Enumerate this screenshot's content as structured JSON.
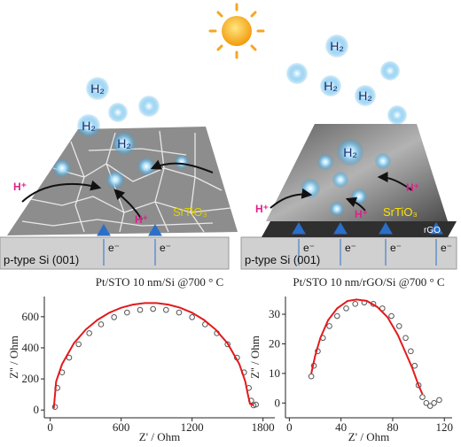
{
  "illustrations": [
    {
      "bubble_labels": [
        "H₂",
        "H₂",
        "H₂"
      ],
      "proton_labels": [
        "H⁺",
        "H⁺"
      ],
      "film_label": "SrTiO₃",
      "electron_labels": [
        "e⁻",
        "e⁻"
      ],
      "substrate_label": "p-type Si (001)"
    },
    {
      "bubble_labels": [
        "H₂",
        "H₂",
        "H₂",
        "H₂"
      ],
      "proton_labels": [
        "H⁺",
        "H⁺",
        "H⁺"
      ],
      "film_label": "SrTiO₃",
      "interlayer_label": "rGO",
      "electron_labels": [
        "e⁻",
        "e⁻",
        "e⁻",
        "e⁻"
      ],
      "substrate_label": "p-type Si (001)"
    }
  ],
  "chart_data": [
    {
      "type": "scatter",
      "title": "Pt/STO 10 nm/Si @700 ° C",
      "xlabel": "Z' / Ohm",
      "ylabel": "Z'' / Ohm",
      "xlim": [
        -50,
        1900
      ],
      "ylim": [
        -50,
        730
      ],
      "xticks": [
        0,
        600,
        1200,
        1800
      ],
      "yticks": [
        0,
        200,
        400,
        600
      ],
      "series": [
        {
          "style": "markers",
          "color": "#555555",
          "x": [
            40,
            60,
            100,
            160,
            240,
            330,
            430,
            540,
            650,
            760,
            870,
            980,
            1090,
            1200,
            1310,
            1410,
            1500,
            1580,
            1640,
            1680,
            1700,
            1720,
            1740
          ],
          "values": [
            20,
            142,
            242,
            337,
            423,
            494,
            551,
            597,
            627,
            644,
            650,
            644,
            627,
            597,
            551,
            494,
            423,
            337,
            242,
            142,
            60,
            30,
            35
          ]
        },
        {
          "style": "line",
          "color": "#e31a1c",
          "x": [
            30,
            50,
            100,
            200,
            300,
            400,
            500,
            600,
            700,
            800,
            900,
            1000,
            1100,
            1200,
            1300,
            1400,
            1500,
            1600,
            1650,
            1670,
            1690,
            1720
          ],
          "values": [
            10,
            184,
            295,
            429,
            517,
            580,
            626,
            658,
            678,
            688,
            688,
            678,
            658,
            626,
            580,
            517,
            429,
            295,
            184,
            107,
            40,
            30
          ]
        }
      ]
    },
    {
      "type": "scatter",
      "title": "Pt/STO 10 nm/rGO/Si @700 ° C",
      "xlabel": "Z' / Ohm",
      "ylabel": "Z'' / Ohm",
      "xlim": [
        -3,
        126
      ],
      "ylim": [
        -5,
        36
      ],
      "xticks": [
        0,
        40,
        80,
        120
      ],
      "yticks": [
        0,
        10,
        20,
        30
      ],
      "series": [
        {
          "style": "markers",
          "color": "#555555",
          "x": [
            17,
            19,
            22,
            26,
            31,
            37,
            44,
            51,
            58,
            65,
            72,
            79,
            85,
            90,
            94,
            97,
            100,
            103,
            106,
            109,
            112,
            116
          ],
          "values": [
            9,
            12.6,
            17.5,
            22,
            26,
            29.4,
            32,
            33.5,
            34,
            33.5,
            32,
            29.4,
            26,
            22,
            17.5,
            12.6,
            6,
            2,
            0,
            -1,
            0,
            1
          ]
        },
        {
          "style": "line",
          "color": "#e31a1c",
          "x": [
            17,
            20,
            24,
            30,
            37,
            45,
            52,
            60,
            68,
            76,
            84,
            90,
            95,
            100,
            103
          ],
          "values": [
            10,
            16,
            22,
            28,
            32,
            34.5,
            35,
            34.5,
            32.5,
            29,
            23,
            17,
            12,
            6,
            3
          ]
        }
      ]
    }
  ]
}
